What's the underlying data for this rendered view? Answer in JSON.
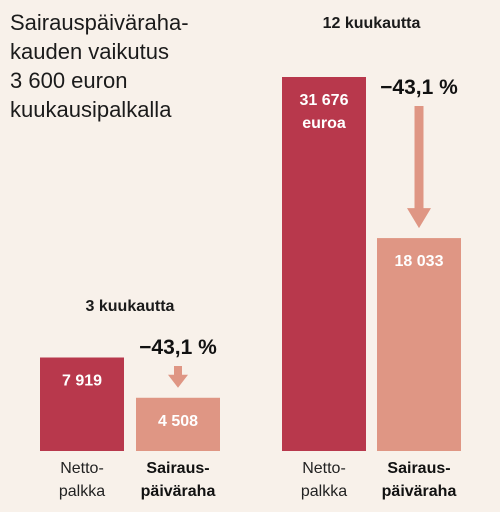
{
  "title_lines": [
    "Sairauspäiväraha-",
    "kauden vaikutus",
    "3 600 euron",
    "kuukausipalkalla"
  ],
  "colors": {
    "netto": "#b8384c",
    "sairaus": "#df9684",
    "arrow": "#df9684",
    "background": "#f8f1ea"
  },
  "chart_data": {
    "type": "bar",
    "title": "Sairauspäiväraha- kauden vaikutus 3 600 euron kuukausipalkalla",
    "categories": [
      [
        "Netto-",
        "palkka"
      ],
      [
        "Sairaus-",
        "päiväraha"
      ]
    ],
    "groups": [
      {
        "label": "3 kuukautta",
        "values": [
          7919,
          4508
        ],
        "value_labels": [
          [
            "7 919"
          ],
          [
            "4 508"
          ]
        ],
        "change_label": "−43,1 %"
      },
      {
        "label": "12 kuukautta",
        "values": [
          31676,
          18033
        ],
        "value_labels": [
          [
            "31 676",
            "euroa"
          ],
          [
            "18 033"
          ]
        ],
        "change_label": "−43,1 %"
      }
    ]
  }
}
